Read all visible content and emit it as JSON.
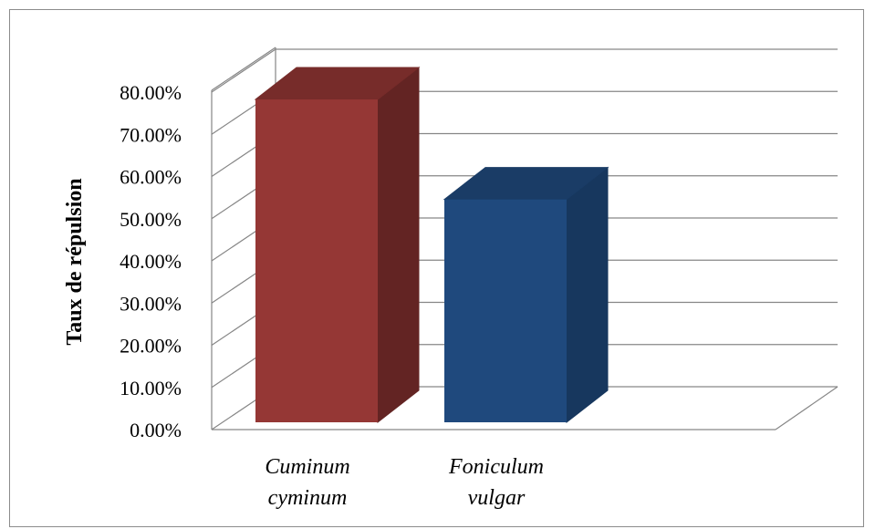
{
  "chart_data": {
    "type": "bar",
    "style": "3d-column",
    "categories": [
      [
        "Cuminum",
        "cyminum"
      ],
      [
        "Foniculum",
        "vulgar"
      ]
    ],
    "values": [
      0.78,
      0.54
    ],
    "ylabel": "Taux de répulsion",
    "ylim": [
      0,
      0.8
    ],
    "yticks": [
      "0.00%",
      "10.00%",
      "20.00%",
      "30.00%",
      "40.00%",
      "50.00%",
      "60.00%",
      "70.00%",
      "80.00%"
    ],
    "grid": true,
    "legend": "none",
    "colors": {
      "bars_front": [
        "#953735",
        "#1f497d"
      ],
      "bars_side": [
        "#632423",
        "#17375e"
      ],
      "bars_top": [
        "#772c2a",
        "#1a3c66"
      ],
      "grid": "#868686"
    }
  }
}
